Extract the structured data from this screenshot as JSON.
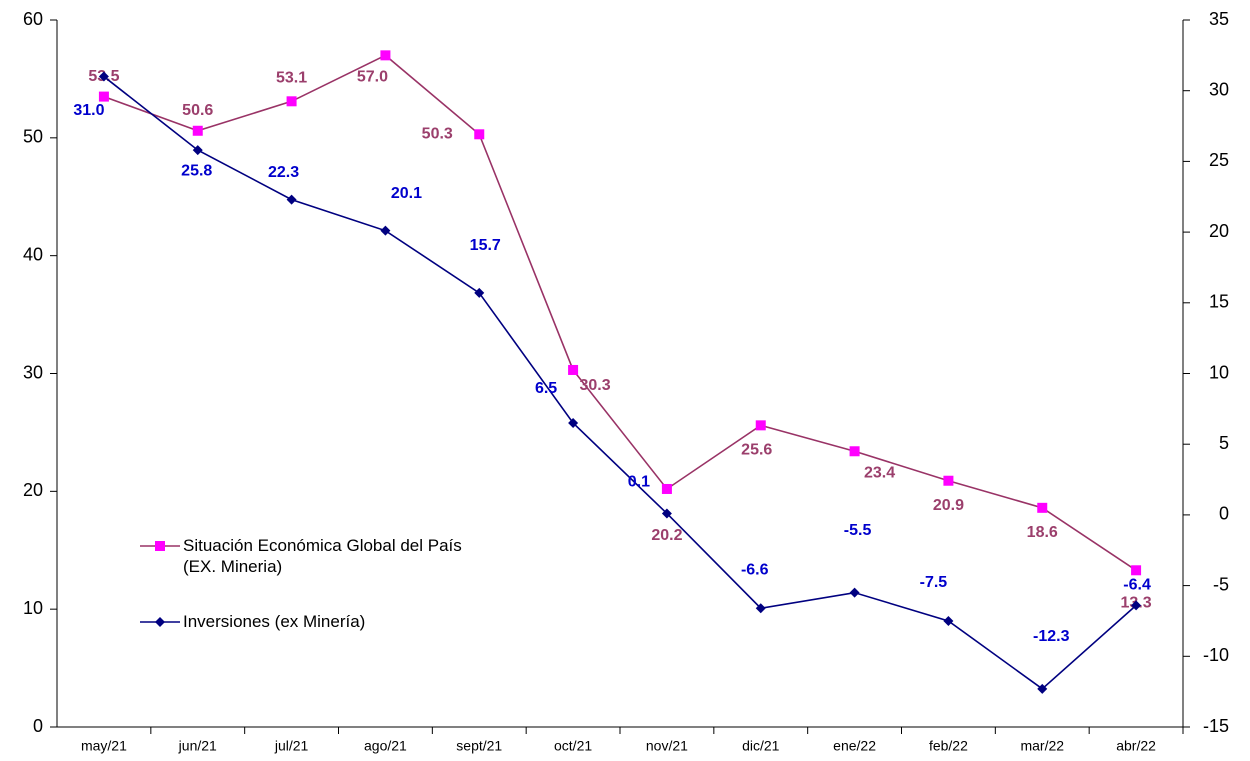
{
  "chart_data": {
    "type": "line",
    "categories": [
      "may/21",
      "jun/21",
      "jul/21",
      "ago/21",
      "sept/21",
      "oct/21",
      "nov/21",
      "dic/21",
      "ene/22",
      "feb/22",
      "mar/22",
      "abr/22"
    ],
    "series": [
      {
        "name": "Situación Económica Global del País\n(EX. Mineria)",
        "color": "#993366",
        "marker_color": "#ff00ff",
        "label_color": "#9b3f6c",
        "marker": "square",
        "axis": "y",
        "values": [
          53.5,
          50.6,
          53.1,
          57,
          50.3,
          30.3,
          20.2,
          25.6,
          23.4,
          20.9,
          18.6,
          13.3
        ],
        "value_labels": [
          "53.5",
          "50.6",
          "53.1",
          "57.0",
          "50.3",
          "30.3",
          "20.2",
          "25.6",
          "23.4",
          "20.9",
          "18.6",
          "13.3"
        ]
      },
      {
        "name": "Inversiones (ex Minería)",
        "color": "#000080",
        "marker_color": "#000080",
        "label_color": "#0000cc",
        "marker": "diamond",
        "axis": "y2",
        "values": [
          31,
          25.8,
          22.3,
          20.1,
          15.7,
          6.5,
          0.1,
          -6.6,
          -5.5,
          -7.5,
          -12.3,
          -6.4
        ],
        "value_labels": [
          "31.0",
          "25.8",
          "22.3",
          "20.1",
          "15.7",
          "6.5",
          "0.1",
          "-6.6",
          "-5.5",
          "-7.5",
          "-12.3",
          "-6.4"
        ]
      }
    ],
    "ylim": [
      0,
      60
    ],
    "yticks": [
      0,
      10,
      20,
      30,
      40,
      50,
      60
    ],
    "y2lim": [
      -15,
      35
    ],
    "y2ticks": [
      -15,
      -10,
      -5,
      0,
      5,
      10,
      15,
      20,
      25,
      30,
      35
    ],
    "grid": false
  }
}
